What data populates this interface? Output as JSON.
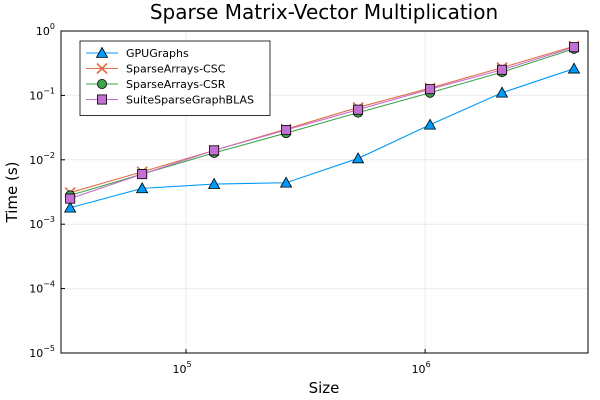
{
  "chart_data": {
    "type": "line",
    "title": "Sparse Matrix-Vector Multiplication",
    "xlabel": "Size",
    "ylabel": "Time (s)",
    "xscale": "log",
    "yscale": "log",
    "xlim": [
      30000,
      4800000
    ],
    "ylim": [
      1e-05,
      1
    ],
    "x_ticks": [
      {
        "value": 100000,
        "base": "10",
        "exp": "5"
      },
      {
        "value": 1000000,
        "base": "10",
        "exp": "6"
      }
    ],
    "y_ticks": [
      {
        "value": 1e-05,
        "base": "10",
        "exp": "−5"
      },
      {
        "value": 0.0001,
        "base": "10",
        "exp": "−4"
      },
      {
        "value": 0.001,
        "base": "10",
        "exp": "−3"
      },
      {
        "value": 0.01,
        "base": "10",
        "exp": "−2"
      },
      {
        "value": 0.1,
        "base": "10",
        "exp": "−1"
      },
      {
        "value": 1,
        "base": "10",
        "exp": "0"
      }
    ],
    "grid": true,
    "legend_position": "top-left",
    "x": [
      32768,
      65536,
      131072,
      262144,
      524288,
      1048576,
      2097152,
      4194304
    ],
    "series": [
      {
        "name": "GPUGraphs",
        "color": "#009af9",
        "marker": "triangle",
        "values": [
          0.0018,
          0.0036,
          0.0042,
          0.0044,
          0.0105,
          0.035,
          0.11,
          0.26
        ]
      },
      {
        "name": "SparseArrays-CSC",
        "color": "#e26f46",
        "marker": "cross",
        "values": [
          0.0031,
          0.0065,
          0.014,
          0.03,
          0.065,
          0.13,
          0.27,
          0.58
        ]
      },
      {
        "name": "SparseArrays-CSR",
        "color": "#3da44d",
        "marker": "circle",
        "values": [
          0.0028,
          0.006,
          0.0128,
          0.026,
          0.054,
          0.11,
          0.23,
          0.53
        ]
      },
      {
        "name": "SuiteSparseGraphBLAS",
        "color": "#c271d2",
        "marker": "square",
        "values": [
          0.0025,
          0.006,
          0.014,
          0.029,
          0.06,
          0.125,
          0.25,
          0.56
        ]
      }
    ]
  }
}
